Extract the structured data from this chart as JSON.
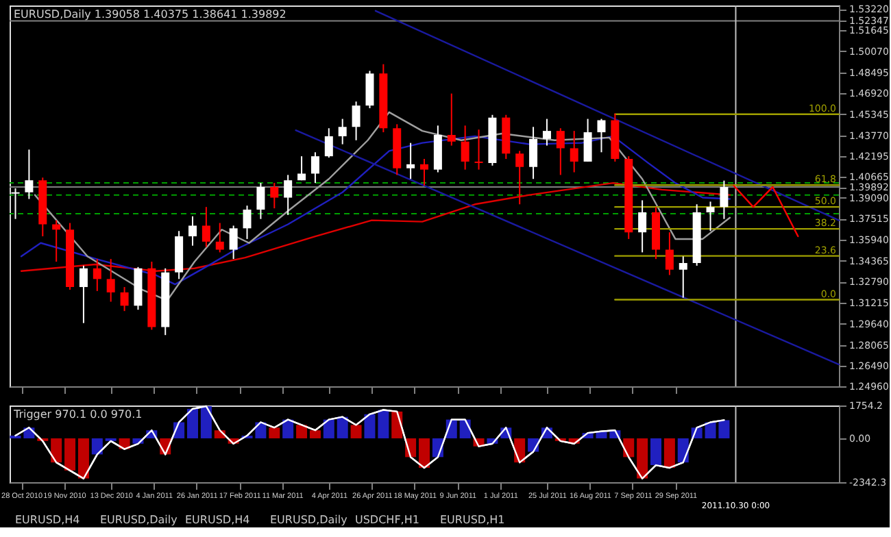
{
  "chart_data": [
    {
      "type": "candlestick",
      "title": "EURUSD,Daily 1.39058 1.40375 1.38641 1.39892",
      "tick_labels": "y",
      "x": [
        "2010-10-25",
        "2010-11-01",
        "2010-11-08",
        "2010-11-15",
        "2010-11-22",
        "2010-11-29",
        "2010-12-06",
        "2010-12-13",
        "2010-12-20",
        "2010-12-27",
        "2011-01-03",
        "2011-01-10",
        "2011-01-17",
        "2011-01-24",
        "2011-01-31",
        "2011-02-07",
        "2011-02-14",
        "2011-02-21",
        "2011-02-28",
        "2011-03-07",
        "2011-03-14",
        "2011-03-21",
        "2011-03-28",
        "2011-04-04",
        "2011-04-11",
        "2011-04-18",
        "2011-04-25",
        "2011-05-02",
        "2011-05-09",
        "2011-05-16",
        "2011-05-23",
        "2011-05-30",
        "2011-06-06",
        "2011-06-13",
        "2011-06-20",
        "2011-06-27",
        "2011-07-04",
        "2011-07-11",
        "2011-07-18",
        "2011-07-25",
        "2011-08-01",
        "2011-08-08",
        "2011-08-15",
        "2011-08-22",
        "2011-08-29",
        "2011-09-05",
        "2011-09-12",
        "2011-09-19",
        "2011-09-26",
        "2011-10-03",
        "2011-10-10",
        "2011-10-17",
        "2011-10-24"
      ],
      "ohlc": [
        [
          1.394,
          1.398,
          1.375,
          1.395
        ],
        [
          1.395,
          1.427,
          1.39,
          1.404
        ],
        [
          1.404,
          1.406,
          1.362,
          1.371
        ],
        [
          1.371,
          1.374,
          1.343,
          1.367
        ],
        [
          1.367,
          1.372,
          1.322,
          1.324
        ],
        [
          1.324,
          1.34,
          1.297,
          1.338
        ],
        [
          1.338,
          1.345,
          1.321,
          1.33
        ],
        [
          1.33,
          1.345,
          1.313,
          1.32
        ],
        [
          1.32,
          1.324,
          1.306,
          1.31
        ],
        [
          1.31,
          1.339,
          1.307,
          1.338
        ],
        [
          1.338,
          1.343,
          1.292,
          1.294
        ],
        [
          1.294,
          1.338,
          1.288,
          1.335
        ],
        [
          1.335,
          1.366,
          1.33,
          1.362
        ],
        [
          1.362,
          1.377,
          1.355,
          1.37
        ],
        [
          1.37,
          1.384,
          1.354,
          1.358
        ],
        [
          1.358,
          1.372,
          1.35,
          1.352
        ],
        [
          1.352,
          1.37,
          1.345,
          1.368
        ],
        [
          1.368,
          1.385,
          1.36,
          1.382
        ],
        [
          1.382,
          1.402,
          1.375,
          1.399
        ],
        [
          1.399,
          1.402,
          1.383,
          1.391
        ],
        [
          1.391,
          1.408,
          1.378,
          1.404
        ],
        [
          1.404,
          1.422,
          1.404,
          1.409
        ],
        [
          1.409,
          1.425,
          1.402,
          1.422
        ],
        [
          1.422,
          1.443,
          1.421,
          1.437
        ],
        [
          1.437,
          1.45,
          1.431,
          1.444
        ],
        [
          1.444,
          1.463,
          1.434,
          1.46
        ],
        [
          1.46,
          1.486,
          1.458,
          1.484
        ],
        [
          1.484,
          1.491,
          1.44,
          1.443
        ],
        [
          1.443,
          1.446,
          1.408,
          1.413
        ],
        [
          1.413,
          1.432,
          1.405,
          1.416
        ],
        [
          1.416,
          1.42,
          1.4,
          1.412
        ],
        [
          1.412,
          1.445,
          1.41,
          1.438
        ],
        [
          1.438,
          1.469,
          1.43,
          1.433
        ],
        [
          1.433,
          1.445,
          1.412,
          1.418
        ],
        [
          1.418,
          1.442,
          1.412,
          1.417
        ],
        [
          1.417,
          1.453,
          1.415,
          1.451
        ],
        [
          1.451,
          1.453,
          1.42,
          1.424
        ],
        [
          1.424,
          1.426,
          1.386,
          1.414
        ],
        [
          1.414,
          1.444,
          1.405,
          1.435
        ],
        [
          1.435,
          1.45,
          1.43,
          1.441
        ],
        [
          1.441,
          1.443,
          1.408,
          1.428
        ],
        [
          1.428,
          1.441,
          1.41,
          1.418
        ],
        [
          1.418,
          1.45,
          1.418,
          1.44
        ],
        [
          1.44,
          1.45,
          1.425,
          1.449
        ],
        [
          1.449,
          1.454,
          1.418,
          1.42
        ],
        [
          1.42,
          1.422,
          1.36,
          1.365
        ],
        [
          1.365,
          1.389,
          1.35,
          1.38
        ],
        [
          1.38,
          1.384,
          1.345,
          1.352
        ],
        [
          1.352,
          1.365,
          1.333,
          1.337
        ],
        [
          1.337,
          1.347,
          1.316,
          1.342
        ],
        [
          1.342,
          1.386,
          1.34,
          1.38
        ],
        [
          1.38,
          1.388,
          1.366,
          1.384
        ],
        [
          1.384,
          1.40375,
          1.375,
          1.39892
        ]
      ],
      "colors": [
        "#ffffff",
        "#ffffff",
        "#ff0000",
        "#ff0000",
        "#ff0000",
        "#ffffff",
        "#ff0000",
        "#ff0000",
        "#ff0000",
        "#ffffff",
        "#ff0000",
        "#ffffff",
        "#ffffff",
        "#ffffff",
        "#ff0000",
        "#ff0000",
        "#ffffff",
        "#ffffff",
        "#ffffff",
        "#ff0000",
        "#ffffff",
        "#ffffff",
        "#ffffff",
        "#ffffff",
        "#ffffff",
        "#ffffff",
        "#ffffff",
        "#ff0000",
        "#ff0000",
        "#ffffff",
        "#ff0000",
        "#ffffff",
        "#ff0000",
        "#ff0000",
        "#ff0000",
        "#ffffff",
        "#ff0000",
        "#ff0000",
        "#ffffff",
        "#ffffff",
        "#ff0000",
        "#ff0000",
        "#ffffff",
        "#ffffff",
        "#ff0000",
        "#ff0000",
        "#ffffff",
        "#ff0000",
        "#ff0000",
        "#ffffff",
        "#ffffff",
        "#ffffff",
        "#ffffff"
      ],
      "series": [
        {
          "type": "line",
          "color": "#e00000",
          "x": [
            "2010-10-28",
            "2010-12-05",
            "2011-01-05",
            "2011-01-25",
            "2011-02-20",
            "2011-03-28",
            "2011-04-26",
            "2011-05-22",
            "2011-06-18",
            "2011-07-16",
            "2011-08-28",
            "2011-09-22",
            "2011-10-27"
          ],
          "values": [
            1.336,
            1.341,
            1.336,
            1.338,
            1.346,
            1.362,
            1.374,
            1.373,
            1.386,
            1.393,
            1.402,
            1.397,
            1.393
          ]
        },
        {
          "type": "line",
          "color": "#2020c0",
          "x": [
            "2010-10-28",
            "2010-11-07",
            "2010-12-08",
            "2011-01-05",
            "2011-01-15",
            "2011-02-01",
            "2011-02-15",
            "2011-03-14",
            "2011-04-11",
            "2011-05-05",
            "2011-05-22",
            "2011-06-18",
            "2011-07-16",
            "2011-08-12",
            "2011-08-28",
            "2011-09-15",
            "2011-09-29",
            "2011-10-13",
            "2011-10-27"
          ],
          "values": [
            1.347,
            1.357,
            1.344,
            1.333,
            1.326,
            1.34,
            1.352,
            1.371,
            1.395,
            1.426,
            1.432,
            1.437,
            1.431,
            1.432,
            1.437,
            1.417,
            1.402,
            1.391,
            1.39
          ]
        },
        {
          "type": "line",
          "color": "#a0a0a0",
          "x": [
            "2010-11-04",
            "2010-12-01",
            "2010-12-29",
            "2011-01-11",
            "2011-01-25",
            "2011-02-08",
            "2011-02-22",
            "2011-03-14",
            "2011-04-04",
            "2011-04-24",
            "2011-05-05",
            "2011-05-22",
            "2011-06-11",
            "2011-07-02",
            "2011-07-29",
            "2011-08-26",
            "2011-09-12",
            "2011-09-29",
            "2011-10-13",
            "2011-10-27"
          ],
          "values": [
            1.393,
            1.347,
            1.322,
            1.314,
            1.343,
            1.367,
            1.357,
            1.381,
            1.405,
            1.434,
            1.455,
            1.441,
            1.434,
            1.439,
            1.434,
            1.436,
            1.405,
            1.36,
            1.36,
            1.376
          ]
        },
        {
          "type": "line",
          "color": "#1a1aa0",
          "x": [
            "2011-04-28",
            "2011-12-22"
          ],
          "values": [
            1.531,
            1.374
          ]
        },
        {
          "type": "line",
          "color": "#1a1aa0",
          "x": [
            "2011-03-18",
            "2011-12-22"
          ],
          "values": [
            1.4415,
            1.266
          ]
        },
        {
          "type": "line",
          "name": "100.0",
          "color": "#a0a000",
          "x": [
            "2011-08-29",
            "2011-12-22"
          ],
          "values": [
            1.4535,
            1.4535
          ]
        },
        {
          "type": "line",
          "name": "61.8",
          "color": "#a0a000",
          "x": [
            "2011-08-29",
            "2011-12-22"
          ],
          "values": [
            1.4004,
            1.4004
          ]
        },
        {
          "type": "line",
          "name": "50.0",
          "color": "#a0a000",
          "x": [
            "2011-08-29",
            "2011-12-22"
          ],
          "values": [
            1.384,
            1.384
          ]
        },
        {
          "type": "line",
          "name": "38.2",
          "color": "#a0a000",
          "x": [
            "2011-08-29",
            "2011-12-22"
          ],
          "values": [
            1.3676,
            1.3676
          ]
        },
        {
          "type": "line",
          "name": "23.6",
          "color": "#a0a000",
          "x": [
            "2011-08-29",
            "2011-12-22"
          ],
          "values": [
            1.3473,
            1.3473
          ]
        },
        {
          "type": "line",
          "name": "0.0",
          "color": "#a0a000",
          "x": [
            "2011-08-29",
            "2011-12-22"
          ],
          "values": [
            1.3145,
            1.3145
          ]
        },
        {
          "type": "line",
          "color": "#ff0000",
          "x": [
            "2011-10-29",
            "2011-11-08",
            "2011-11-18",
            "2011-12-01"
          ],
          "values": [
            1.4,
            1.384,
            1.399,
            1.362
          ]
        }
      ],
      "ref_lines": [
        {
          "axis": "y",
          "value": 1.402,
          "color": "#00a000",
          "line_style": "dashed"
        },
        {
          "axis": "y",
          "value": 1.393,
          "color": "#00a000",
          "line_style": "dashed"
        },
        {
          "axis": "y",
          "value": 1.379,
          "color": "#00a000",
          "line_style": "dashed"
        },
        {
          "axis": "y",
          "value": 1.39892,
          "color": "#808080"
        },
        {
          "axis": "y",
          "value": 1.52347,
          "color": "#808080"
        },
        {
          "axis": "x",
          "value": "2011-10-30",
          "color": "#c0c0c0"
        }
      ],
      "xlim": [
        "2010-10-22",
        "2011-12-22"
      ],
      "xticks": [
        {
          "value": "2010-10-28",
          "label": null
        },
        {
          "value": "2010-11-19",
          "label": null
        },
        {
          "value": "2010-12-13",
          "label": null
        },
        {
          "value": "2011-01-04",
          "label": null
        },
        {
          "value": "2011-01-26",
          "label": null
        },
        {
          "value": "2011-02-17",
          "label": null
        },
        {
          "value": "2011-03-11",
          "label": null
        },
        {
          "value": "2011-04-04",
          "label": null
        },
        {
          "value": "2011-04-26",
          "label": null
        },
        {
          "value": "2011-05-18",
          "label": null
        },
        {
          "value": "2011-06-09",
          "label": null
        },
        {
          "value": "2011-07-01",
          "label": null
        },
        {
          "value": "2011-07-25",
          "label": null
        },
        {
          "value": "2011-08-16",
          "label": null
        },
        {
          "value": "2011-09-07",
          "label": null
        },
        {
          "value": "2011-09-29",
          "label": null
        }
      ],
      "ylim": [
        1.2496,
        1.535
      ],
      "yticks": [
        {
          "value": 1.5322,
          "label": "1.53220"
        },
        {
          "value": 1.52347,
          "label": "1.52347"
        },
        {
          "value": 1.51645,
          "label": "1.51645"
        },
        {
          "value": 1.5007,
          "label": "1.50070"
        },
        {
          "value": 1.48495,
          "label": "1.48495"
        },
        {
          "value": 1.4692,
          "label": "1.46920"
        },
        {
          "value": 1.45345,
          "label": "1.45345"
        },
        {
          "value": 1.4377,
          "label": "1.43770"
        },
        {
          "value": 1.42195,
          "label": "1.42195"
        },
        {
          "value": 1.40665,
          "label": "1.40665"
        },
        {
          "value": 1.39892,
          "label": "1.39892"
        },
        {
          "value": 1.3909,
          "label": "1.39090"
        },
        {
          "value": 1.37515,
          "label": "1.37515"
        },
        {
          "value": 1.3594,
          "label": "1.35940"
        },
        {
          "value": 1.34365,
          "label": "1.34365"
        },
        {
          "value": 1.3279,
          "label": "1.32790"
        },
        {
          "value": 1.31215,
          "label": "1.31215"
        },
        {
          "value": 1.2964,
          "label": "1.29640"
        },
        {
          "value": 1.28065,
          "label": "1.28065"
        },
        {
          "value": 1.2649,
          "label": "1.26490"
        },
        {
          "value": 1.2496,
          "label": "1.24960"
        }
      ]
    },
    {
      "type": "bar",
      "title": "Trigger 970.1 0.0 970.1",
      "x": [
        "2010-10-25",
        "2010-11-01",
        "2010-11-08",
        "2010-11-15",
        "2010-11-22",
        "2010-11-29",
        "2010-12-06",
        "2010-12-13",
        "2010-12-20",
        "2010-12-27",
        "2011-01-03",
        "2011-01-10",
        "2011-01-17",
        "2011-01-24",
        "2011-01-31",
        "2011-02-07",
        "2011-02-14",
        "2011-02-21",
        "2011-02-28",
        "2011-03-07",
        "2011-03-14",
        "2011-03-21",
        "2011-03-28",
        "2011-04-04",
        "2011-04-11",
        "2011-04-18",
        "2011-04-25",
        "2011-05-02",
        "2011-05-09",
        "2011-05-16",
        "2011-05-23",
        "2011-05-30",
        "2011-06-06",
        "2011-06-13",
        "2011-06-20",
        "2011-06-27",
        "2011-07-04",
        "2011-07-11",
        "2011-07-18",
        "2011-07-25",
        "2011-08-01",
        "2011-08-08",
        "2011-08-15",
        "2011-08-22",
        "2011-08-29",
        "2011-09-05",
        "2011-09-12",
        "2011-09-19",
        "2011-09-26",
        "2011-10-03",
        "2011-10-10",
        "2011-10-17",
        "2011-10-24"
      ],
      "values": [
        143,
        572,
        -143,
        -1287,
        -1716,
        -2145,
        -858,
        -143,
        -572,
        -286,
        429,
        -858,
        858,
        1573,
        1716,
        429,
        -286,
        143,
        858,
        572,
        1001,
        715,
        429,
        1001,
        1144,
        715,
        1287,
        1516,
        1430,
        -1001,
        -1573,
        -1001,
        1001,
        1001,
        -429,
        -286,
        572,
        -1287,
        -715,
        572,
        -143,
        -286,
        286,
        372,
        429,
        -1001,
        -2145,
        -1430,
        -1573,
        -1287,
        572,
        858,
        970.1
      ],
      "colors": [
        "#2020c0",
        "#2020c0",
        "#c00000",
        "#c00000",
        "#c00000",
        "#c00000",
        "#2020c0",
        "#2020c0",
        "#c00000",
        "#2020c0",
        "#2020c0",
        "#c00000",
        "#2020c0",
        "#2020c0",
        "#2020c0",
        "#c00000",
        "#c00000",
        "#2020c0",
        "#2020c0",
        "#c00000",
        "#2020c0",
        "#c00000",
        "#c00000",
        "#2020c0",
        "#2020c0",
        "#c00000",
        "#2020c0",
        "#2020c0",
        "#c00000",
        "#c00000",
        "#c00000",
        "#2020c0",
        "#2020c0",
        "#2020c0",
        "#c00000",
        "#2020c0",
        "#2020c0",
        "#c00000",
        "#2020c0",
        "#2020c0",
        "#c00000",
        "#c00000",
        "#2020c0",
        "#2020c0",
        "#2020c0",
        "#c00000",
        "#c00000",
        "#2020c0",
        "#c00000",
        "#2020c0",
        "#2020c0",
        "#2020c0",
        "#2020c0"
      ],
      "series": [
        {
          "type": "line",
          "color": "#ffffff",
          "values": [
            143,
            572,
            -143,
            -1287,
            -1716,
            -2145,
            -858,
            -143,
            -572,
            -286,
            429,
            -858,
            858,
            1573,
            1716,
            429,
            -286,
            143,
            858,
            572,
            1001,
            715,
            429,
            1001,
            1144,
            715,
            1287,
            1516,
            1430,
            -1001,
            -1573,
            -1001,
            1001,
            1001,
            -429,
            -286,
            572,
            -1287,
            -715,
            572,
            -143,
            -286,
            286,
            372,
            429,
            -1001,
            -2145,
            -1430,
            -1573,
            -1287,
            572,
            858,
            970.1
          ]
        }
      ],
      "ref_lines": [
        {
          "axis": "x",
          "value": "2011-10-30",
          "label": "2011.10.30 0:00",
          "color": "#c0c0c0"
        }
      ],
      "annotations": [
        "EURUSD,H4",
        "EURUSD,Daily",
        "EURUSD,H4",
        "EURUSD,Daily",
        "USDCHF,H1",
        "EURUSD,H1"
      ],
      "xlim": [
        "2010-10-22",
        "2011-12-22"
      ],
      "xticks": [
        {
          "value": "2010-10-28",
          "label": "28 Oct 2010"
        },
        {
          "value": "2010-11-19",
          "label": "19 Nov 2010"
        },
        {
          "value": "2010-12-13",
          "label": "13 Dec 2010"
        },
        {
          "value": "2011-01-04",
          "label": "4 Jan 2011"
        },
        {
          "value": "2011-01-26",
          "label": "26 Jan 2011"
        },
        {
          "value": "2011-02-17",
          "label": "17 Feb 2011"
        },
        {
          "value": "2011-03-11",
          "label": "11 Mar 2011"
        },
        {
          "value": "2011-04-04",
          "label": "4 Apr 2011"
        },
        {
          "value": "2011-04-26",
          "label": "26 Apr 2011"
        },
        {
          "value": "2011-05-18",
          "label": "18 May 2011"
        },
        {
          "value": "2011-06-09",
          "label": "9 Jun 2011"
        },
        {
          "value": "2011-07-01",
          "label": "1 Jul 2011"
        },
        {
          "value": "2011-07-25",
          "label": "25 Jul 2011"
        },
        {
          "value": "2011-08-16",
          "label": "16 Aug 2011"
        },
        {
          "value": "2011-09-07",
          "label": "7 Sep 2011"
        },
        {
          "value": "2011-09-29",
          "label": "29 Sep 2011"
        }
      ],
      "ylim": [
        -2342.3,
        1754.2
      ],
      "yticks": [
        1754.2,
        {
          "value": 0,
          "label": "0.00"
        },
        -2342.3
      ]
    }
  ]
}
